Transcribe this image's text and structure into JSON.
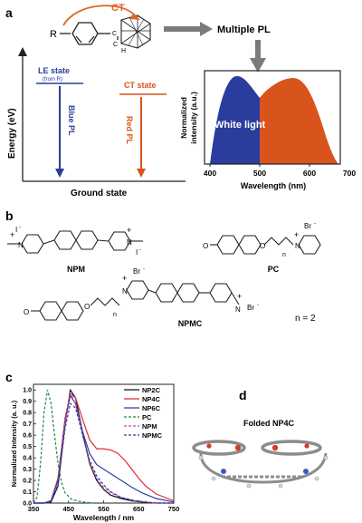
{
  "panel_a": {
    "label": "a",
    "molecule_R": "R",
    "molecule_C1": "C",
    "molecule_C2": "C",
    "molecule_H": "H",
    "ct_arrow_label": "CT",
    "multiple_pl": "Multiple PL",
    "y_axis_label": "Energy (eV)",
    "le_state": "LE state",
    "le_state_sub": "(from R)",
    "blue_pl": "Blue PL",
    "ct_state": "CT state",
    "red_pl": "Red PL",
    "ground_state": "Ground state",
    "spectrum_ylabel_1": "Normalized",
    "spectrum_ylabel_2": "intensity (a.u.)",
    "white_light": "White light",
    "spectrum_xlabel": "Wavelength (nm)",
    "spectrum_xticks": [
      "400",
      "500",
      "600",
      "700"
    ],
    "colors": {
      "blue": "#2a3d9c",
      "red": "#d9531c",
      "ct_arrow": "#e0662a",
      "arrow_grey": "#7b7b7b"
    }
  },
  "panel_b": {
    "label": "b",
    "npm": "NPM",
    "pc": "PC",
    "npmc": "NPMC",
    "n_value": "n = 2",
    "counterion_I": "I",
    "counterion_Br": "Br",
    "plus": "+",
    "minus": "-",
    "atom_N": "N",
    "atom_O": "O",
    "subscript_n": "n"
  },
  "panel_c": {
    "label": "c",
    "ylabel": "Normalized Intensity (a. u.)",
    "xlabel": "Wavelength / nm",
    "xticks": [
      "350",
      "450",
      "550",
      "650",
      "750"
    ],
    "yticks": [
      "0.0",
      "0.1",
      "0.2",
      "0.3",
      "0.4",
      "0.5",
      "0.6",
      "0.7",
      "0.8",
      "0.9",
      "1.0"
    ]
  },
  "panel_d": {
    "label": "d",
    "title": "Folded NP4C"
  },
  "chart_data": {
    "type": "line",
    "xlabel": "Wavelength / nm",
    "ylabel": "Normalized Intensity (a. u.)",
    "xlim": [
      350,
      750
    ],
    "ylim": [
      0,
      1.05
    ],
    "series": [
      {
        "name": "NP2C",
        "color": "#111111",
        "dash": "solid",
        "x": [
          350,
          380,
          400,
          420,
          440,
          455,
          470,
          490,
          510,
          530,
          550,
          570,
          600,
          630,
          660,
          700,
          750
        ],
        "y": [
          0.0,
          0.0,
          0.01,
          0.15,
          0.7,
          1.0,
          0.93,
          0.62,
          0.35,
          0.2,
          0.12,
          0.07,
          0.04,
          0.02,
          0.01,
          0.0,
          0.0
        ]
      },
      {
        "name": "NP4C",
        "color": "#e0283a",
        "dash": "solid",
        "x": [
          350,
          380,
          400,
          420,
          440,
          455,
          470,
          490,
          510,
          530,
          550,
          570,
          590,
          610,
          630,
          650,
          670,
          700,
          750
        ],
        "y": [
          0.0,
          0.0,
          0.02,
          0.22,
          0.75,
          0.97,
          0.93,
          0.74,
          0.56,
          0.48,
          0.48,
          0.47,
          0.44,
          0.38,
          0.3,
          0.22,
          0.15,
          0.08,
          0.02
        ]
      },
      {
        "name": "NP6C",
        "color": "#2b3f9e",
        "dash": "solid",
        "x": [
          350,
          380,
          400,
          420,
          440,
          455,
          470,
          490,
          510,
          530,
          550,
          570,
          600,
          630,
          660,
          700,
          750
        ],
        "y": [
          0.0,
          0.0,
          0.02,
          0.2,
          0.72,
          0.95,
          0.88,
          0.63,
          0.44,
          0.34,
          0.3,
          0.26,
          0.2,
          0.14,
          0.09,
          0.04,
          0.01
        ]
      },
      {
        "name": "PC",
        "color": "#1f8a3a",
        "dash": "dashed",
        "x": [
          350,
          360,
          370,
          380,
          390,
          400,
          410,
          420,
          430,
          440,
          460,
          490,
          520
        ],
        "y": [
          0.0,
          0.05,
          0.35,
          0.8,
          1.0,
          0.88,
          0.6,
          0.35,
          0.18,
          0.09,
          0.03,
          0.01,
          0.0
        ]
      },
      {
        "name": "NPM",
        "color": "#c04aa8",
        "dash": "dashed",
        "x": [
          350,
          380,
          400,
          420,
          440,
          455,
          470,
          490,
          510,
          530,
          550,
          570,
          600,
          640,
          700,
          750
        ],
        "y": [
          0.0,
          0.0,
          0.01,
          0.18,
          0.72,
          0.97,
          0.88,
          0.6,
          0.36,
          0.22,
          0.14,
          0.09,
          0.05,
          0.02,
          0.0,
          0.0
        ]
      },
      {
        "name": "NPMC",
        "color": "#2b3f9e",
        "dash": "dashed",
        "x": [
          350,
          380,
          400,
          420,
          440,
          455,
          470,
          490,
          510,
          530,
          550,
          570,
          600,
          640,
          700,
          750
        ],
        "y": [
          0.0,
          0.0,
          0.01,
          0.16,
          0.66,
          0.88,
          0.84,
          0.6,
          0.38,
          0.24,
          0.16,
          0.1,
          0.05,
          0.02,
          0.0,
          0.0
        ]
      }
    ]
  }
}
